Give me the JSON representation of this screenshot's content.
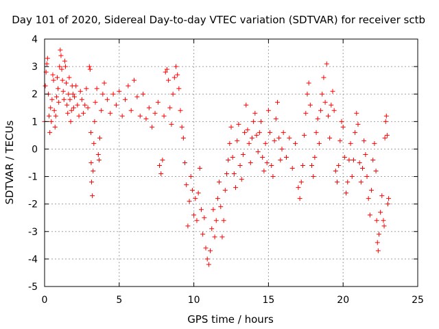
{
  "chart_data": {
    "type": "scatter",
    "title": "Day 101 of 2020, Sidereal Day-to-day VTEC variation (SDTVAR) for receiver sctb",
    "xlabel": "GPS time / hours",
    "ylabel": "SDTVAR / TECUs",
    "xlim": [
      0,
      25
    ],
    "ylim": [
      -5,
      4
    ],
    "xticks": [
      "0",
      "5",
      "10",
      "15",
      "20",
      "25"
    ],
    "yticks": [
      "-5",
      "-4",
      "-3",
      "-2",
      "-1",
      "0",
      "1",
      "2",
      "3",
      "4"
    ],
    "grid": true,
    "marker": "+",
    "series": [
      {
        "name": "SDTVAR",
        "color": "#ff0000",
        "points": [
          [
            0.0,
            1.0
          ],
          [
            0.05,
            2.3
          ],
          [
            0.1,
            2.8
          ],
          [
            0.15,
            3.1
          ],
          [
            0.2,
            3.3
          ],
          [
            0.25,
            2.0
          ],
          [
            0.3,
            1.2
          ],
          [
            0.35,
            0.6
          ],
          [
            0.4,
            1.5
          ],
          [
            0.45,
            1.0
          ],
          [
            0.5,
            1.8
          ],
          [
            0.55,
            2.7
          ],
          [
            0.6,
            2.5
          ],
          [
            0.65,
            1.4
          ],
          [
            0.7,
            0.8
          ],
          [
            0.75,
            1.2
          ],
          [
            0.8,
            1.9
          ],
          [
            0.85,
            2.6
          ],
          [
            0.9,
            2.2
          ],
          [
            0.95,
            1.7
          ],
          [
            1.0,
            3.0
          ],
          [
            1.05,
            3.6
          ],
          [
            1.1,
            3.4
          ],
          [
            1.15,
            2.9
          ],
          [
            1.2,
            2.5
          ],
          [
            1.25,
            2.1
          ],
          [
            1.3,
            1.8
          ],
          [
            1.35,
            3.2
          ],
          [
            1.4,
            3.0
          ],
          [
            1.45,
            2.4
          ],
          [
            1.5,
            1.6
          ],
          [
            1.55,
            1.3
          ],
          [
            1.6,
            2.0
          ],
          [
            1.65,
            2.6
          ],
          [
            1.7,
            1.8
          ],
          [
            1.75,
            1.0
          ],
          [
            1.8,
            1.4
          ],
          [
            1.85,
            2.3
          ],
          [
            1.9,
            2.0
          ],
          [
            1.95,
            1.5
          ],
          [
            2.0,
            1.9
          ],
          [
            2.1,
            2.3
          ],
          [
            2.2,
            1.6
          ],
          [
            2.3,
            1.2
          ],
          [
            2.4,
            2.1
          ],
          [
            2.5,
            1.8
          ],
          [
            2.6,
            1.3
          ],
          [
            2.7,
            1.6
          ],
          [
            2.8,
            2.2
          ],
          [
            2.9,
            1.5
          ],
          [
            3.0,
            3.0
          ],
          [
            3.05,
            2.9
          ],
          [
            3.1,
            0.6
          ],
          [
            3.12,
            -0.5
          ],
          [
            3.15,
            -1.2
          ],
          [
            3.2,
            -1.7
          ],
          [
            3.25,
            -0.8
          ],
          [
            3.3,
            0.2
          ],
          [
            3.35,
            1.0
          ],
          [
            3.4,
            1.7
          ],
          [
            3.5,
            2.2
          ],
          [
            3.6,
            -0.2
          ],
          [
            3.65,
            -0.4
          ],
          [
            3.7,
            0.4
          ],
          [
            3.8,
            1.4
          ],
          [
            3.9,
            2.0
          ],
          [
            4.0,
            2.4
          ],
          [
            4.2,
            1.8
          ],
          [
            4.4,
            1.3
          ],
          [
            4.6,
            2.0
          ],
          [
            4.8,
            1.6
          ],
          [
            5.0,
            2.1
          ],
          [
            5.2,
            1.2
          ],
          [
            5.4,
            1.8
          ],
          [
            5.6,
            2.3
          ],
          [
            5.8,
            1.4
          ],
          [
            6.0,
            2.5
          ],
          [
            6.2,
            1.9
          ],
          [
            6.4,
            1.2
          ],
          [
            6.6,
            2.0
          ],
          [
            6.8,
            1.1
          ],
          [
            7.0,
            1.5
          ],
          [
            7.2,
            0.8
          ],
          [
            7.4,
            1.3
          ],
          [
            7.6,
            1.7
          ],
          [
            7.7,
            -0.6
          ],
          [
            7.8,
            -0.9
          ],
          [
            7.9,
            -0.4
          ],
          [
            8.0,
            1.2
          ],
          [
            8.1,
            2.8
          ],
          [
            8.2,
            2.9
          ],
          [
            8.3,
            2.5
          ],
          [
            8.4,
            1.5
          ],
          [
            8.5,
            0.9
          ],
          [
            8.6,
            2.0
          ],
          [
            8.7,
            2.6
          ],
          [
            8.8,
            3.0
          ],
          [
            8.9,
            2.7
          ],
          [
            9.0,
            2.2
          ],
          [
            9.1,
            1.4
          ],
          [
            9.2,
            0.8
          ],
          [
            9.3,
            0.4
          ],
          [
            9.4,
            -0.5
          ],
          [
            9.5,
            -1.3
          ],
          [
            9.6,
            -2.8
          ],
          [
            9.7,
            -1.9
          ],
          [
            9.8,
            -1.0
          ],
          [
            9.9,
            -1.5
          ],
          [
            10.0,
            -2.4
          ],
          [
            10.1,
            -1.8
          ],
          [
            10.2,
            -2.6
          ],
          [
            10.3,
            -1.6
          ],
          [
            10.4,
            -0.7
          ],
          [
            10.5,
            -2.2
          ],
          [
            10.6,
            -3.1
          ],
          [
            10.7,
            -2.5
          ],
          [
            10.8,
            -3.6
          ],
          [
            10.9,
            -4.0
          ],
          [
            11.0,
            -4.2
          ],
          [
            11.1,
            -3.7
          ],
          [
            11.2,
            -2.9
          ],
          [
            11.3,
            -2.2
          ],
          [
            11.4,
            -3.2
          ],
          [
            11.5,
            -2.6
          ],
          [
            11.6,
            -1.8
          ],
          [
            11.7,
            -1.2
          ],
          [
            11.8,
            -2.1
          ],
          [
            11.9,
            -3.2
          ],
          [
            12.0,
            -2.6
          ],
          [
            12.1,
            -1.5
          ],
          [
            12.2,
            -0.9
          ],
          [
            12.3,
            -0.4
          ],
          [
            12.4,
            0.2
          ],
          [
            12.5,
            0.8
          ],
          [
            12.6,
            -0.3
          ],
          [
            12.7,
            -0.9
          ],
          [
            12.8,
            -1.4
          ],
          [
            12.9,
            0.3
          ],
          [
            13.0,
            0.9
          ],
          [
            13.1,
            -0.6
          ],
          [
            13.2,
            -1.1
          ],
          [
            13.3,
            -0.2
          ],
          [
            13.4,
            0.6
          ],
          [
            13.5,
            1.6
          ],
          [
            13.6,
            0.7
          ],
          [
            13.7,
            0.2
          ],
          [
            13.8,
            -0.5
          ],
          [
            13.9,
            0.4
          ],
          [
            14.0,
            1.0
          ],
          [
            14.1,
            1.3
          ],
          [
            14.2,
            0.5
          ],
          [
            14.3,
            -0.1
          ],
          [
            14.4,
            0.6
          ],
          [
            14.5,
            1.0
          ],
          [
            14.6,
            -0.3
          ],
          [
            14.7,
            -0.8
          ],
          [
            14.8,
            0.2
          ],
          [
            14.9,
            -0.5
          ],
          [
            15.0,
            1.4
          ],
          [
            15.1,
            0.6
          ],
          [
            15.2,
            -0.6
          ],
          [
            15.3,
            -1.0
          ],
          [
            15.4,
            0.3
          ],
          [
            15.5,
            1.1
          ],
          [
            15.6,
            1.7
          ],
          [
            15.7,
            0.4
          ],
          [
            15.8,
            -0.4
          ],
          [
            15.9,
            0.0
          ],
          [
            16.0,
            0.6
          ],
          [
            16.2,
            -0.3
          ],
          [
            16.4,
            0.4
          ],
          [
            16.6,
            -0.7
          ],
          [
            16.8,
            0.2
          ],
          [
            17.0,
            -1.4
          ],
          [
            17.1,
            -1.8
          ],
          [
            17.2,
            -1.2
          ],
          [
            17.3,
            -0.6
          ],
          [
            17.4,
            0.5
          ],
          [
            17.5,
            1.3
          ],
          [
            17.6,
            2.0
          ],
          [
            17.7,
            2.4
          ],
          [
            17.8,
            1.6
          ],
          [
            17.9,
            -0.6
          ],
          [
            18.0,
            -1.0
          ],
          [
            18.1,
            -0.3
          ],
          [
            18.2,
            0.6
          ],
          [
            18.3,
            1.1
          ],
          [
            18.4,
            0.2
          ],
          [
            18.5,
            1.4
          ],
          [
            18.6,
            2.0
          ],
          [
            18.7,
            2.6
          ],
          [
            18.8,
            1.7
          ],
          [
            18.9,
            3.1
          ],
          [
            19.0,
            1.2
          ],
          [
            19.1,
            0.4
          ],
          [
            19.2,
            1.6
          ],
          [
            19.3,
            2.1
          ],
          [
            19.4,
            1.4
          ],
          [
            19.5,
            -0.8
          ],
          [
            19.6,
            -1.2
          ],
          [
            19.7,
            -0.6
          ],
          [
            19.8,
            0.3
          ],
          [
            19.9,
            1.0
          ],
          [
            20.0,
            0.8
          ],
          [
            20.1,
            -0.3
          ],
          [
            20.2,
            -1.6
          ],
          [
            20.3,
            -1.2
          ],
          [
            20.4,
            -0.4
          ],
          [
            20.5,
            0.2
          ],
          [
            20.6,
            -1.0
          ],
          [
            20.7,
            -0.4
          ],
          [
            20.8,
            0.6
          ],
          [
            20.9,
            1.3
          ],
          [
            21.0,
            0.9
          ],
          [
            21.1,
            -0.5
          ],
          [
            21.2,
            -1.2
          ],
          [
            21.3,
            -0.7
          ],
          [
            21.4,
            0.3
          ],
          [
            21.5,
            -0.2
          ],
          [
            21.6,
            -1.0
          ],
          [
            21.7,
            -1.8
          ],
          [
            21.8,
            -2.4
          ],
          [
            21.9,
            -1.5
          ],
          [
            22.0,
            -0.4
          ],
          [
            22.1,
            0.2
          ],
          [
            22.2,
            -0.8
          ],
          [
            22.25,
            -2.6
          ],
          [
            22.3,
            -3.4
          ],
          [
            22.35,
            -3.7
          ],
          [
            22.4,
            -3.1
          ],
          [
            22.5,
            -2.3
          ],
          [
            22.6,
            -1.7
          ],
          [
            22.7,
            -2.6
          ],
          [
            22.75,
            -2.8
          ],
          [
            22.8,
            0.4
          ],
          [
            22.85,
            1.0
          ],
          [
            22.9,
            1.2
          ],
          [
            22.95,
            0.5
          ],
          [
            23.0,
            -2.0
          ],
          [
            23.05,
            -1.8
          ]
        ]
      }
    ]
  }
}
